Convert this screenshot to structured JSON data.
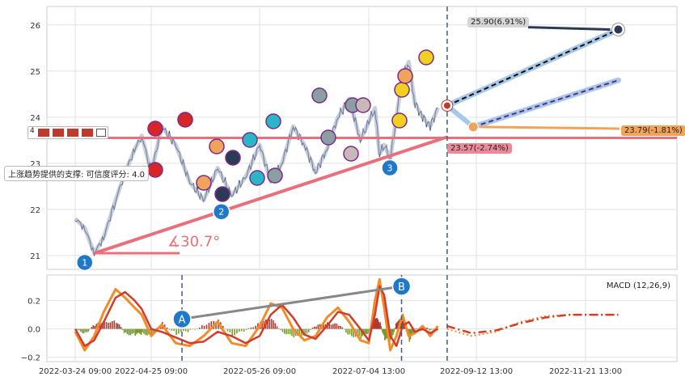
{
  "chart_data": [
    {
      "type": "line",
      "panel": "price",
      "xlabel": "",
      "ylabel": "",
      "ylim": [
        20.7,
        26.4
      ],
      "y_ticks": [
        "21",
        "22",
        "23",
        "24",
        "25",
        "26"
      ],
      "x_ticks": [
        "2022-03-24 09:00",
        "2022-04-25 09:00",
        "2022-05-26 09:00",
        "2022-07-04 13:00",
        "2022-09-12 13:00",
        "2022-11-21 13:00"
      ],
      "grid": true,
      "angle_label": "∡30.7°",
      "support_label": "上涨趋势提供的支撑: 可信度评分: 4.0",
      "rating_label": "4",
      "wave_labels": [
        "1",
        "2",
        "3"
      ],
      "horizontal_level": 23.55,
      "price_series": {
        "name": "",
        "x": [
          "2022-03-24",
          "2022-03-28",
          "2022-04-01",
          "2022-04-05",
          "2022-04-10",
          "2022-04-14",
          "2022-04-18",
          "2022-04-21",
          "2022-04-25",
          "2022-04-28",
          "2022-05-02",
          "2022-05-06",
          "2022-05-10",
          "2022-05-14",
          "2022-05-18",
          "2022-05-22",
          "2022-05-26",
          "2022-05-30",
          "2022-06-03",
          "2022-06-07",
          "2022-06-11",
          "2022-06-15",
          "2022-06-19",
          "2022-06-23",
          "2022-06-27",
          "2022-07-01",
          "2022-07-04",
          "2022-07-08",
          "2022-07-11",
          "2022-07-14",
          "2022-07-18",
          "2022-07-22",
          "2022-07-26",
          "2022-07-30",
          "2022-08-03",
          "2022-08-08",
          "2022-08-13",
          "2022-08-18"
        ],
        "y": [
          21.8,
          21.6,
          21.05,
          21.4,
          22.2,
          22.8,
          23.3,
          23.6,
          22.8,
          23.8,
          23.4,
          22.6,
          22.2,
          22.9,
          22.3,
          22.7,
          23.4,
          22.6,
          23.0,
          23.8,
          23.4,
          22.8,
          23.3,
          24.0,
          24.4,
          23.5,
          23.9,
          24.2,
          23.2,
          23.4,
          23.1,
          24.0,
          24.9,
          25.2,
          24.3,
          24.0,
          23.8,
          24.2
        ]
      },
      "support_line": {
        "from": {
          "x": "2022-04-01",
          "y": 21.05
        },
        "to": {
          "x": "2022-08-24",
          "y": 23.57
        }
      },
      "vertical_marker": "2022-08-24",
      "annotations": [
        {
          "text": "25.90(6.91%)",
          "value": 25.9,
          "target_date": "2022-12-12",
          "bg": "#d6d6d6",
          "fg": "#222222"
        },
        {
          "text": "23.79(-1.81%)",
          "value": 23.79,
          "target_date": "2022-09-10",
          "bg": "#f0a35a",
          "fg": "#222222"
        },
        {
          "text": "23.57(-2.74%)",
          "value": 23.57,
          "target_date": "2022-08-24",
          "bg": "#ea8b9a",
          "fg": "#222222"
        }
      ],
      "projections": [
        {
          "from": {
            "x": "2022-08-24",
            "y": 24.25
          },
          "to": {
            "x": "2022-12-12",
            "y": 25.9
          },
          "style": "dashed-black"
        },
        {
          "from": {
            "x": "2022-09-10",
            "y": 23.79
          },
          "to": {
            "x": "2022-12-12",
            "y": 24.8
          },
          "style": "dashed-purple"
        }
      ],
      "colors": {
        "price": "#3a4a6a",
        "support": "#e8707c",
        "projection": "#a8c8e8",
        "accent_orange": "#f0a35a",
        "marker_dark": "#2b3a55"
      }
    },
    {
      "type": "line",
      "panel": "macd",
      "title": "MACD (12,26,9)",
      "xlabel": "",
      "ylabel": "",
      "ylim": [
        -0.23,
        0.38
      ],
      "y_ticks": [
        "−0.2",
        "0.0",
        "0.2"
      ],
      "wave_labels": [
        "A",
        "B"
      ],
      "series": [
        {
          "name": "",
          "values": [
            -0.02,
            -0.15,
            -0.05,
            0.12,
            0.28,
            0.22,
            0.15,
            0.1,
            -0.05,
            0.03,
            -0.1,
            -0.12,
            -0.05,
            0.05,
            -0.1,
            -0.12,
            0.02,
            0.18,
            0.15,
            0.0,
            -0.08,
            -0.05,
            0.08,
            0.15,
            0.05,
            -0.08,
            -0.1,
            0.2,
            0.35,
            0.15,
            -0.15,
            -0.05,
            0.1,
            -0.05,
            -0.03,
            0.02,
            -0.05,
            0.02
          ]
        },
        {
          "name": "",
          "values": [
            0.0,
            -0.12,
            -0.08,
            0.05,
            0.22,
            0.26,
            0.2,
            0.14,
            0.0,
            -0.02,
            -0.06,
            -0.1,
            -0.09,
            -0.02,
            -0.05,
            -0.1,
            -0.05,
            0.1,
            0.17,
            0.08,
            -0.04,
            -0.07,
            0.02,
            0.12,
            0.1,
            0.0,
            -0.08,
            0.1,
            0.3,
            0.24,
            -0.05,
            -0.12,
            0.02,
            0.05,
            -0.02,
            0.0,
            -0.03,
            0.0
          ]
        }
      ],
      "forecast": {
        "macd": [
          0.0,
          -0.05,
          -0.02,
          0.05,
          0.09,
          0.1,
          0.1,
          0.1
        ],
        "signal": [
          0.02,
          -0.03,
          -0.01,
          0.04,
          0.08,
          0.1,
          0.1,
          0.1
        ]
      },
      "colors": {
        "macd": "#f28c28",
        "signal": "#d23c2c",
        "hist_pos": "#b03a2e",
        "hist_neg": "#7a9a2a"
      }
    }
  ]
}
